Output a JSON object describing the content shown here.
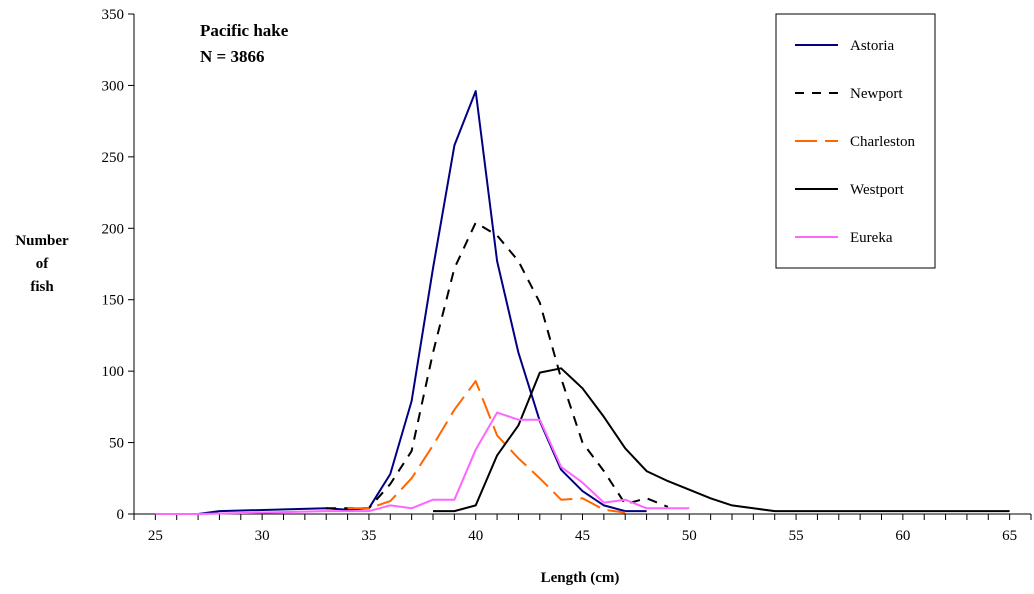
{
  "chart_data": {
    "type": "line",
    "annotation": [
      "Pacific hake",
      "N = 3866"
    ],
    "xlabel": "Length (cm)",
    "ylabel": [
      "Number",
      "of",
      "fish"
    ],
    "xlim": [
      24,
      66
    ],
    "ylim": [
      0,
      350
    ],
    "x_ticks": [
      25,
      30,
      35,
      40,
      45,
      50,
      55,
      60,
      65
    ],
    "y_ticks": [
      0,
      50,
      100,
      150,
      200,
      250,
      300,
      350
    ],
    "grid": false,
    "legend_position": "top-right",
    "series": [
      {
        "name": "Astoria",
        "color": "#000080",
        "dash": "solid",
        "points": [
          [
            25,
            0
          ],
          [
            26,
            0
          ],
          [
            27,
            0
          ],
          [
            28,
            2
          ],
          [
            33,
            4
          ],
          [
            34,
            3
          ],
          [
            35,
            4
          ],
          [
            36,
            28
          ],
          [
            37,
            79
          ],
          [
            38,
            172
          ],
          [
            39,
            258
          ],
          [
            40,
            296
          ],
          [
            41,
            177
          ],
          [
            42,
            113
          ],
          [
            43,
            65
          ],
          [
            44,
            31
          ],
          [
            45,
            16
          ],
          [
            46,
            6
          ],
          [
            47,
            2
          ],
          [
            48,
            2
          ]
        ]
      },
      {
        "name": "Newport",
        "color": "#000000",
        "dash": "dashed",
        "points": [
          [
            33,
            4
          ],
          [
            35,
            4
          ],
          [
            36,
            21
          ],
          [
            37,
            44
          ],
          [
            38,
            113
          ],
          [
            39,
            172
          ],
          [
            40,
            204
          ],
          [
            41,
            195
          ],
          [
            42,
            177
          ],
          [
            43,
            148
          ],
          [
            44,
            95
          ],
          [
            45,
            50
          ],
          [
            46,
            30
          ],
          [
            47,
            7
          ],
          [
            48,
            11
          ],
          [
            49,
            5
          ]
        ]
      },
      {
        "name": "Charleston",
        "color": "#ff6600",
        "dash": "long-dash",
        "points": [
          [
            34,
            4
          ],
          [
            35,
            4
          ],
          [
            36,
            9
          ],
          [
            37,
            25
          ],
          [
            38,
            48
          ],
          [
            39,
            73
          ],
          [
            40,
            93
          ],
          [
            41,
            55
          ],
          [
            42,
            39
          ],
          [
            43,
            25
          ],
          [
            44,
            10
          ],
          [
            45,
            11
          ],
          [
            46,
            3
          ],
          [
            47,
            1
          ]
        ]
      },
      {
        "name": "Westport",
        "color": "#000000",
        "dash": "solid",
        "points": [
          [
            38,
            2
          ],
          [
            39,
            2
          ],
          [
            40,
            6
          ],
          [
            41,
            41
          ],
          [
            42,
            62
          ],
          [
            43,
            99
          ],
          [
            44,
            102
          ],
          [
            45,
            88
          ],
          [
            46,
            68
          ],
          [
            47,
            46
          ],
          [
            48,
            30
          ],
          [
            49,
            23
          ],
          [
            50,
            17
          ],
          [
            51,
            11
          ],
          [
            52,
            6
          ],
          [
            53,
            4
          ],
          [
            54,
            2
          ],
          [
            64,
            2
          ],
          [
            65,
            2
          ]
        ]
      },
      {
        "name": "Eureka",
        "color": "#ff66ff",
        "dash": "solid",
        "points": [
          [
            25,
            0
          ],
          [
            27,
            0
          ],
          [
            33,
            2
          ],
          [
            34,
            2
          ],
          [
            35,
            2
          ],
          [
            36,
            6
          ],
          [
            37,
            4
          ],
          [
            38,
            10
          ],
          [
            39,
            10
          ],
          [
            40,
            45
          ],
          [
            41,
            71
          ],
          [
            42,
            66
          ],
          [
            43,
            66
          ],
          [
            44,
            33
          ],
          [
            45,
            22
          ],
          [
            46,
            8
          ],
          [
            47,
            10
          ],
          [
            48,
            4
          ],
          [
            49,
            4
          ],
          [
            50,
            4
          ]
        ]
      }
    ]
  }
}
